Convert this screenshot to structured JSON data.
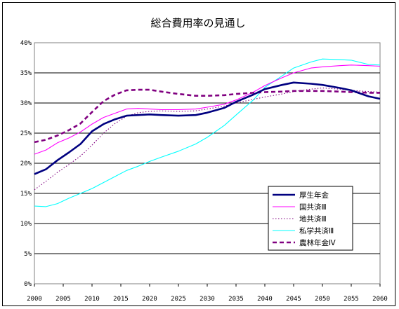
{
  "chart_data": {
    "type": "line",
    "title": "総合費用率の見通し",
    "xlabel": "",
    "ylabel": "",
    "xlim": [
      2000,
      2060
    ],
    "ylim": [
      0,
      40
    ],
    "x_ticks": [
      "2000",
      "2005",
      "2010",
      "2015",
      "2020",
      "2025",
      "2030",
      "2035",
      "2040",
      "2045",
      "2050",
      "2055",
      "2060"
    ],
    "y_ticks": [
      "0%",
      "5%",
      "10%",
      "15%",
      "20%",
      "25%",
      "30%",
      "35%",
      "40%"
    ],
    "grid": "horizontal",
    "legend_position": "bottom-right",
    "series": [
      {
        "name": "厚生年金",
        "color": "#000080",
        "style": "thick-solid",
        "points": [
          [
            2000,
            18.2
          ],
          [
            2002,
            19.0
          ],
          [
            2004,
            20.5
          ],
          [
            2006,
            21.8
          ],
          [
            2008,
            23.2
          ],
          [
            2010,
            25.3
          ],
          [
            2012,
            26.5
          ],
          [
            2014,
            27.3
          ],
          [
            2016,
            27.9
          ],
          [
            2018,
            28.0
          ],
          [
            2020,
            28.1
          ],
          [
            2022,
            28.0
          ],
          [
            2025,
            27.9
          ],
          [
            2028,
            28.0
          ],
          [
            2030,
            28.4
          ],
          [
            2033,
            29.2
          ],
          [
            2035,
            30.2
          ],
          [
            2038,
            31.4
          ],
          [
            2040,
            32.3
          ],
          [
            2043,
            33.0
          ],
          [
            2045,
            33.4
          ],
          [
            2048,
            33.2
          ],
          [
            2050,
            33.0
          ],
          [
            2053,
            32.5
          ],
          [
            2055,
            32.1
          ],
          [
            2058,
            31.1
          ],
          [
            2060,
            30.7
          ]
        ]
      },
      {
        "name": "国共済Ⅲ",
        "color": "#ff00ff",
        "style": "solid",
        "points": [
          [
            2000,
            21.5
          ],
          [
            2002,
            22.2
          ],
          [
            2004,
            23.4
          ],
          [
            2006,
            24.2
          ],
          [
            2008,
            25.2
          ],
          [
            2010,
            26.5
          ],
          [
            2012,
            27.6
          ],
          [
            2014,
            28.3
          ],
          [
            2016,
            29.0
          ],
          [
            2018,
            29.1
          ],
          [
            2020,
            29.0
          ],
          [
            2022,
            28.9
          ],
          [
            2025,
            28.9
          ],
          [
            2028,
            29.0
          ],
          [
            2030,
            29.3
          ],
          [
            2033,
            29.8
          ],
          [
            2035,
            30.5
          ],
          [
            2038,
            31.8
          ],
          [
            2040,
            32.9
          ],
          [
            2043,
            34.2
          ],
          [
            2045,
            35.0
          ],
          [
            2048,
            35.8
          ],
          [
            2050,
            36.0
          ],
          [
            2053,
            36.2
          ],
          [
            2055,
            36.3
          ],
          [
            2058,
            36.2
          ],
          [
            2060,
            36.1
          ]
        ]
      },
      {
        "name": "地共済Ⅲ",
        "color": "#800080",
        "style": "dotted",
        "points": [
          [
            2000,
            15.6
          ],
          [
            2002,
            17.0
          ],
          [
            2004,
            18.5
          ],
          [
            2006,
            19.8
          ],
          [
            2008,
            21.2
          ],
          [
            2010,
            23.0
          ],
          [
            2012,
            25.0
          ],
          [
            2014,
            26.6
          ],
          [
            2016,
            27.8
          ],
          [
            2018,
            28.4
          ],
          [
            2020,
            28.6
          ],
          [
            2022,
            28.7
          ],
          [
            2025,
            28.6
          ],
          [
            2028,
            28.7
          ],
          [
            2030,
            29.0
          ],
          [
            2033,
            29.5
          ],
          [
            2035,
            30.0
          ],
          [
            2038,
            30.6
          ],
          [
            2040,
            31.0
          ],
          [
            2043,
            31.5
          ],
          [
            2045,
            31.9
          ],
          [
            2048,
            32.3
          ],
          [
            2050,
            32.5
          ],
          [
            2053,
            32.3
          ],
          [
            2055,
            32.1
          ],
          [
            2058,
            31.9
          ],
          [
            2060,
            31.8
          ]
        ]
      },
      {
        "name": "私学共済Ⅲ",
        "color": "#00ffff",
        "style": "solid",
        "points": [
          [
            2000,
            12.9
          ],
          [
            2002,
            12.8
          ],
          [
            2004,
            13.3
          ],
          [
            2006,
            14.2
          ],
          [
            2008,
            15.0
          ],
          [
            2010,
            15.8
          ],
          [
            2012,
            16.8
          ],
          [
            2014,
            17.8
          ],
          [
            2016,
            18.8
          ],
          [
            2018,
            19.5
          ],
          [
            2020,
            20.3
          ],
          [
            2022,
            21.0
          ],
          [
            2025,
            22.0
          ],
          [
            2028,
            23.2
          ],
          [
            2030,
            24.3
          ],
          [
            2033,
            26.3
          ],
          [
            2035,
            28.0
          ],
          [
            2038,
            30.5
          ],
          [
            2040,
            32.6
          ],
          [
            2043,
            34.5
          ],
          [
            2045,
            35.8
          ],
          [
            2048,
            36.8
          ],
          [
            2050,
            37.3
          ],
          [
            2053,
            37.2
          ],
          [
            2055,
            37.1
          ],
          [
            2058,
            36.4
          ],
          [
            2060,
            36.3
          ]
        ]
      },
      {
        "name": "農林年金Ⅳ",
        "color": "#800080",
        "style": "thick-dashed",
        "points": [
          [
            2000,
            23.5
          ],
          [
            2002,
            23.9
          ],
          [
            2004,
            24.6
          ],
          [
            2006,
            25.5
          ],
          [
            2008,
            26.6
          ],
          [
            2010,
            28.5
          ],
          [
            2012,
            30.3
          ],
          [
            2014,
            31.4
          ],
          [
            2016,
            32.1
          ],
          [
            2018,
            32.2
          ],
          [
            2020,
            32.2
          ],
          [
            2022,
            31.9
          ],
          [
            2025,
            31.5
          ],
          [
            2028,
            31.2
          ],
          [
            2030,
            31.2
          ],
          [
            2033,
            31.3
          ],
          [
            2035,
            31.5
          ],
          [
            2038,
            31.7
          ],
          [
            2040,
            31.8
          ],
          [
            2043,
            31.9
          ],
          [
            2045,
            32.0
          ],
          [
            2048,
            32.0
          ],
          [
            2050,
            32.0
          ],
          [
            2053,
            31.9
          ],
          [
            2055,
            31.8
          ],
          [
            2058,
            31.7
          ],
          [
            2060,
            31.7
          ]
        ]
      }
    ]
  }
}
